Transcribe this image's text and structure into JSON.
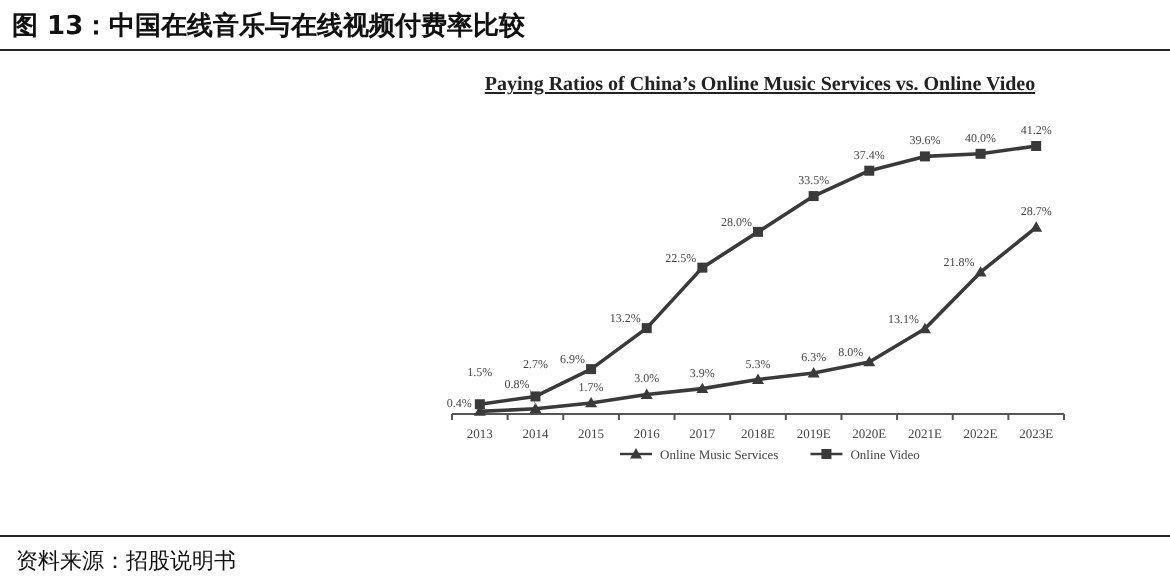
{
  "chart_data": {
    "type": "line",
    "title": "图 13：中国在线音乐与在线视频付费率比较",
    "subtitle": "Paying Ratios of China’s Online Music Services vs. Online Video",
    "categories": [
      "2013",
      "2014",
      "2015",
      "2016",
      "2017",
      "2018E",
      "2019E",
      "2020E",
      "2021E",
      "2022E",
      "2023E"
    ],
    "series": [
      {
        "name": "Online Music Services",
        "color": "#3a3a3a",
        "marker": "triangle",
        "values": [
          0.4,
          0.8,
          1.7,
          3.0,
          3.9,
          5.3,
          6.3,
          8.0,
          13.1,
          21.8,
          28.7
        ],
        "value_labels": [
          "0.4%",
          "0.8%",
          "1.7%",
          "3.0%",
          "3.9%",
          "5.3%",
          "6.3%",
          "8.0%",
          "13.1%",
          "21.8%",
          "28.7%"
        ]
      },
      {
        "name": "Online Video",
        "color": "#3a3a3a",
        "marker": "square",
        "values": [
          1.5,
          2.7,
          6.9,
          13.2,
          22.5,
          28.0,
          33.5,
          37.4,
          39.6,
          40.0,
          41.2
        ],
        "value_labels": [
          "1.5%",
          "2.7%",
          "6.9%",
          "13.2%",
          "22.5%",
          "28.0%",
          "33.5%",
          "37.4%",
          "39.6%",
          "40.0%",
          "41.2%"
        ]
      }
    ],
    "legend": "bottom",
    "annotations": [
      "资料来源：招股说明书"
    ]
  }
}
